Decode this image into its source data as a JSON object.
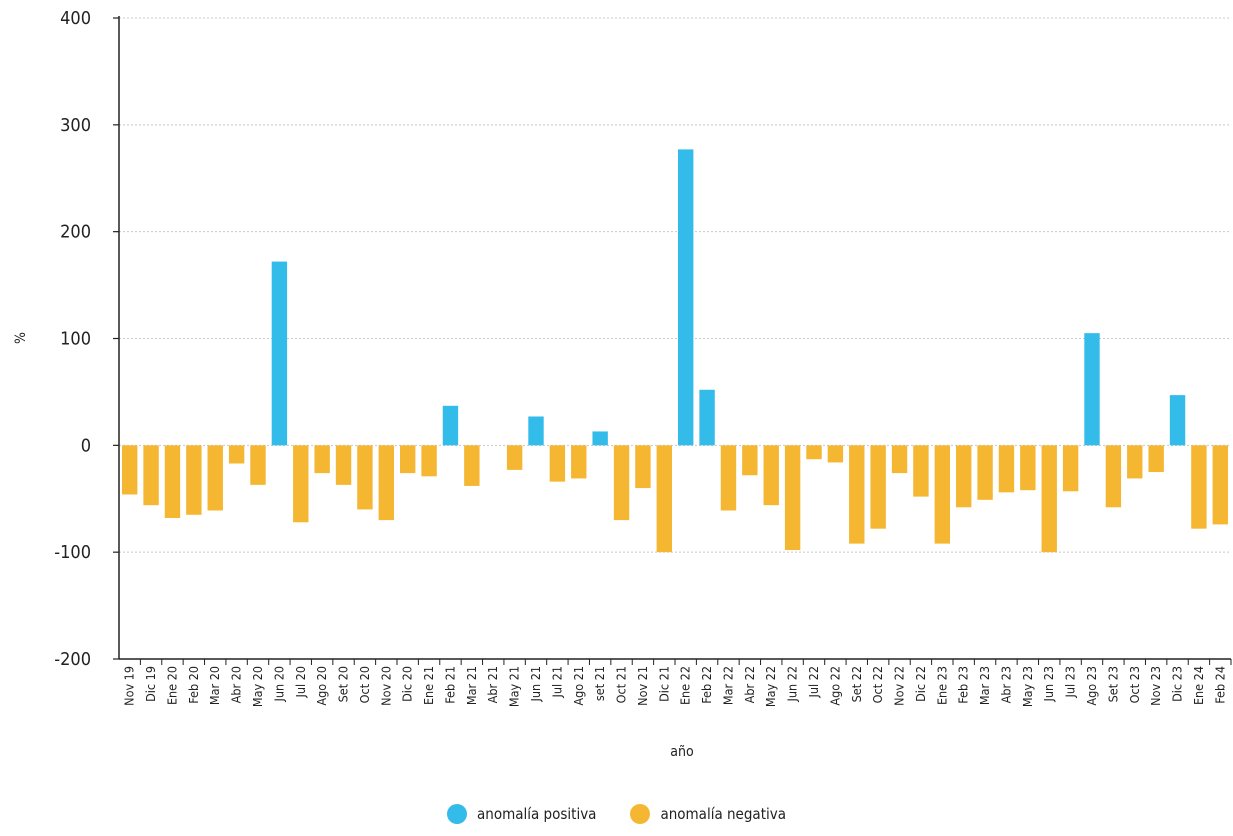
{
  "chart_data": {
    "type": "bar",
    "xlabel": "año",
    "ylabel": "%",
    "ylim": [
      -200,
      400
    ],
    "yticks": [
      400,
      300,
      200,
      100,
      0,
      -100,
      -200
    ],
    "grid": true,
    "legend_position": "bottom",
    "categories": [
      "Nov 19",
      "Dic 19",
      "Ene 20",
      "Feb 20",
      "Mar 20",
      "Abr 20",
      "May 20",
      "Jun 20",
      "Jul 20",
      "Ago 20",
      "Set 20",
      "Oct 20",
      "Nov 20",
      "Dic 20",
      "Ene 21",
      "Feb 21",
      "Mar 21",
      "Abr 21",
      "May 21",
      "Jun 21",
      "Jul 21",
      "Ago 21",
      "set 21",
      "Oct 21",
      "Nov 21",
      "Dic 21",
      "Ene 22",
      "Feb 22",
      "Mar 22",
      "Abr 22",
      "May 22",
      "Jun 22",
      "Jul 22",
      "Ago 22",
      "Set 22",
      "Oct 22",
      "Nov 22",
      "Dic 22",
      "Ene 23",
      "Feb 23",
      "Mar 23",
      "Abr 23",
      "May 23",
      "Jun 23",
      "Jul 23",
      "Ago 23",
      "Set 23",
      "Oct 23",
      "Nov 23",
      "Dic 23",
      "Ene 24",
      "Feb 24"
    ],
    "values": [
      -46,
      -56,
      -68,
      -65,
      -61,
      -17,
      -37,
      172,
      -72,
      -26,
      -37,
      -60,
      -70,
      -26,
      -29,
      37,
      -38,
      0,
      -23,
      27,
      -34,
      -31,
      13,
      -70,
      -40,
      -100,
      277,
      52,
      -61,
      -28,
      -56,
      -98,
      -13,
      -16,
      -92,
      -78,
      -26,
      -48,
      -92,
      -58,
      -51,
      -44,
      -42,
      -100,
      -43,
      105,
      -58,
      -31,
      -25,
      47,
      -78,
      -74
    ],
    "series": [
      {
        "name": "anomalía positiva",
        "color": "#33bbea"
      },
      {
        "name": "anomalía negativa",
        "color": "#f5b731"
      }
    ]
  }
}
